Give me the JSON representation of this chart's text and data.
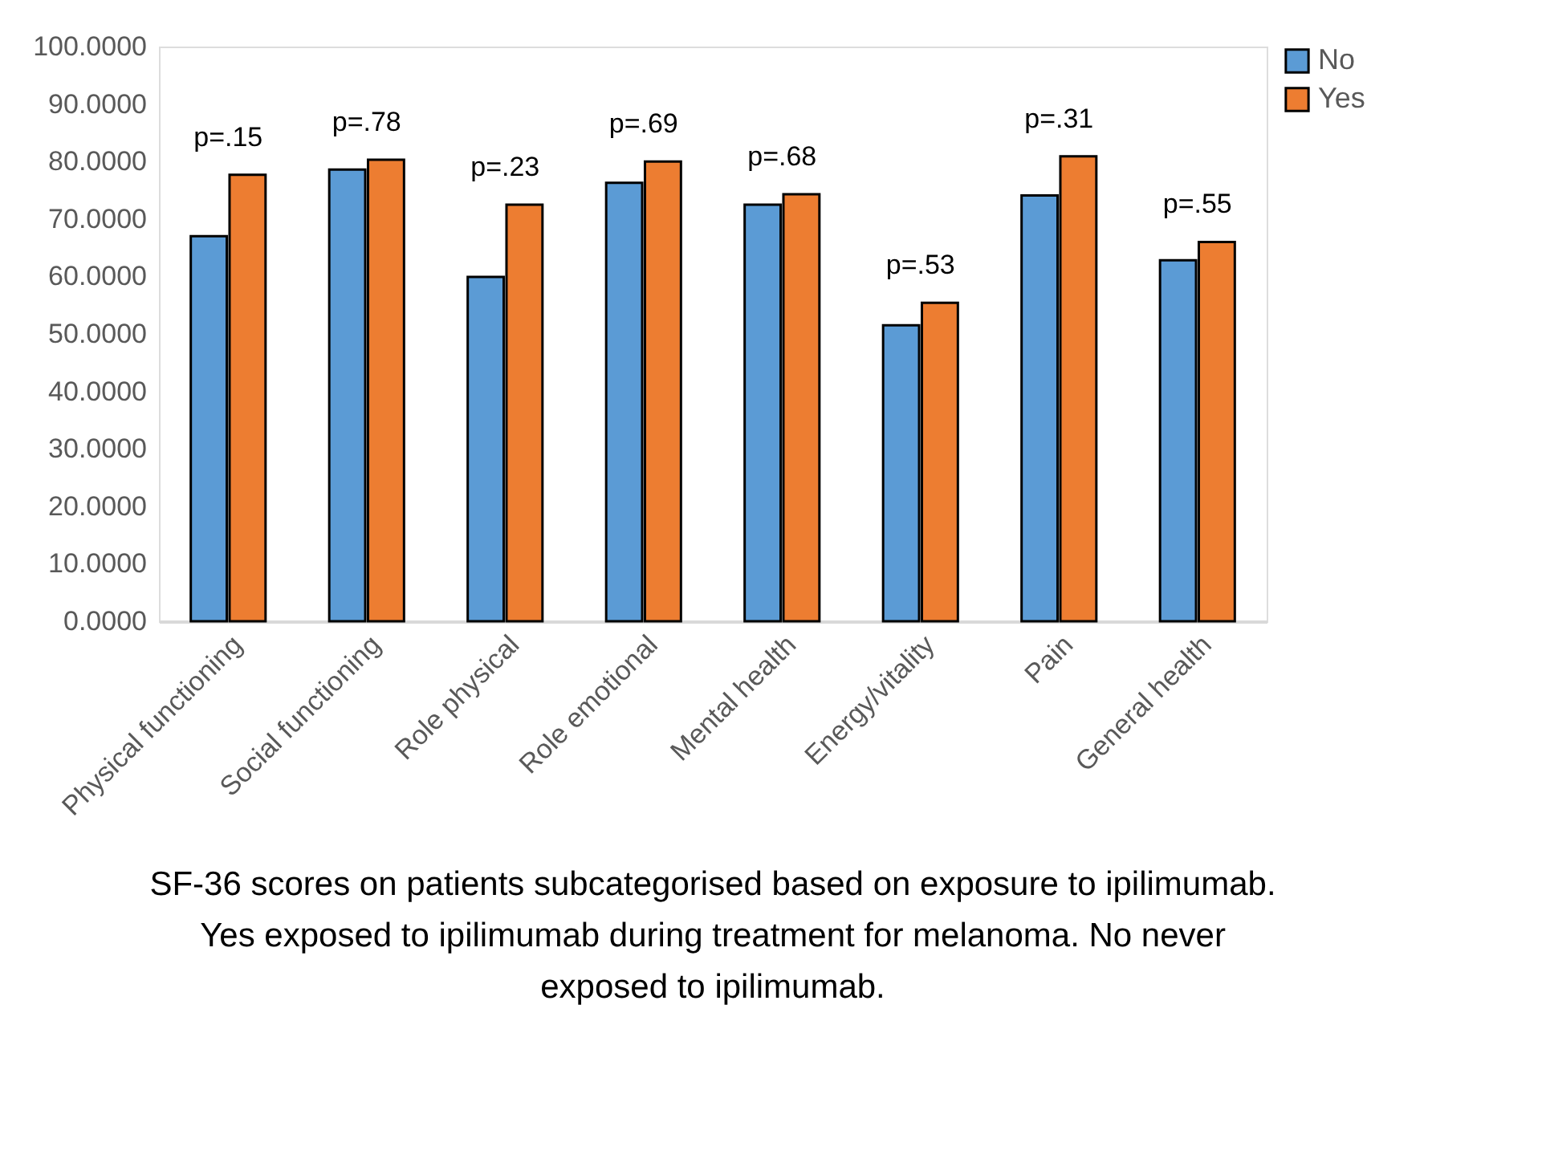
{
  "chart_data": {
    "type": "bar",
    "categories": [
      "Physical functioning",
      "Social functioning",
      "Role physical",
      "Role emotional",
      "Mental health",
      "Energy/vitality",
      "Pain",
      "General health"
    ],
    "series": [
      {
        "name": "No",
        "color": "#5b9bd5",
        "values": [
          67.0,
          78.6,
          59.9,
          76.3,
          72.5,
          51.5,
          74.1,
          62.8
        ]
      },
      {
        "name": "Yes",
        "color": "#ed7d31",
        "values": [
          77.7,
          80.3,
          72.5,
          80.0,
          74.3,
          55.4,
          80.9,
          66.0
        ]
      }
    ],
    "ylim": [
      0,
      100
    ],
    "yticks": [
      {
        "value": 0,
        "label": "0.0000"
      },
      {
        "value": 10,
        "label": "10.0000"
      },
      {
        "value": 20,
        "label": "20.0000"
      },
      {
        "value": 30,
        "label": "30.0000"
      },
      {
        "value": 40,
        "label": "40.0000"
      },
      {
        "value": 50,
        "label": "50.0000"
      },
      {
        "value": 60,
        "label": "60.0000"
      },
      {
        "value": 70,
        "label": "70.0000"
      },
      {
        "value": 80,
        "label": "80.0000"
      },
      {
        "value": 90,
        "label": "90.0000"
      },
      {
        "value": 100,
        "label": "100.0000"
      }
    ],
    "annotations": [
      "p=.15",
      "p=.78",
      "p=.23",
      "p=.69",
      "p=.68",
      "p=.53",
      "p=.31",
      "p=.55",
      "SF-36 scores on patients subcategorised based on exposure to ipilimumab. Yes exposed to ipilimumab during treatment for melanoma. No never exposed to ipilimumab."
    ],
    "grid": false,
    "legend": "right"
  }
}
